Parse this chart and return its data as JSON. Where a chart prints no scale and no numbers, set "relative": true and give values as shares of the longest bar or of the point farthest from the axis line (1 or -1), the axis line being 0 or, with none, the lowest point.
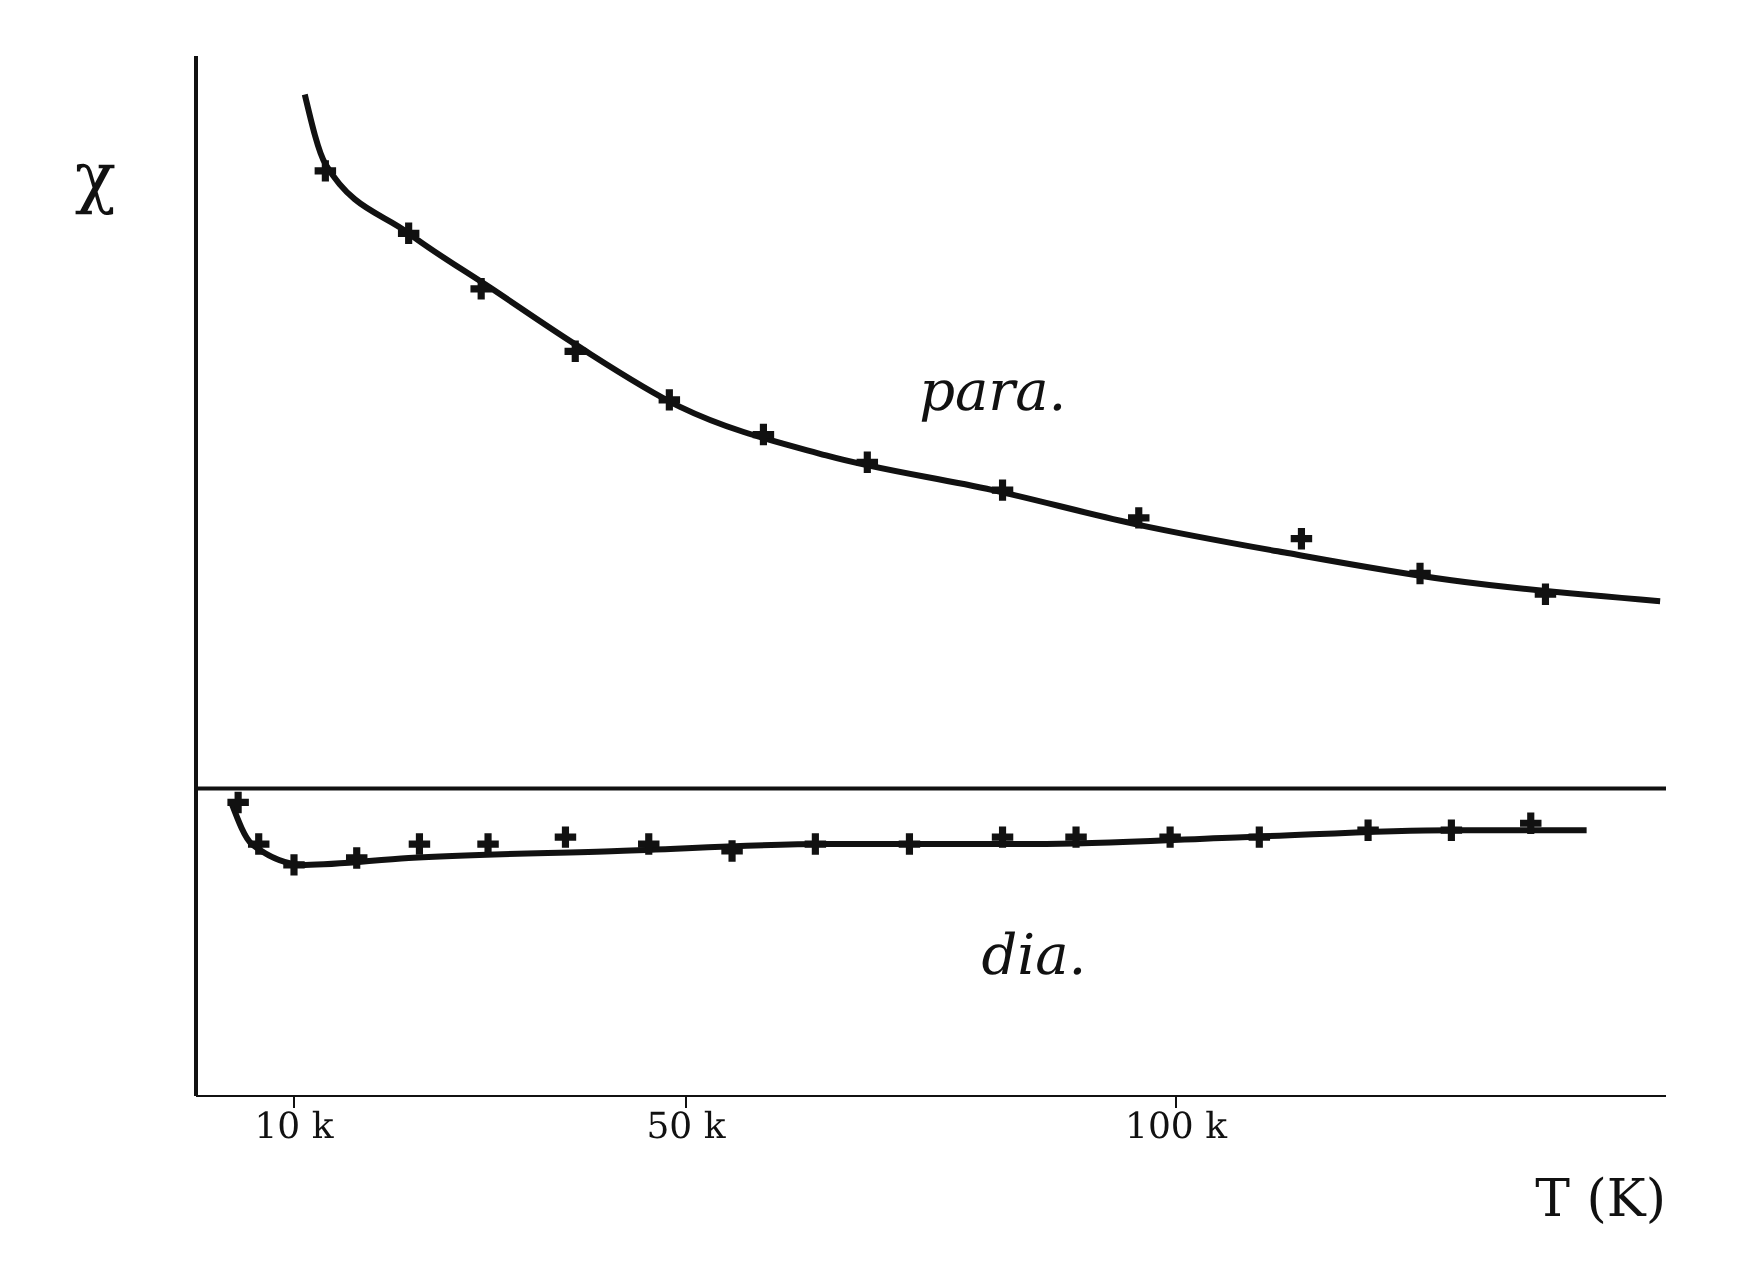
{
  "chart_data": {
    "type": "line",
    "relative": true,
    "xlabel": "T (K)",
    "ylabel": "χ",
    "xlim": [
      0,
      150
    ],
    "xticks": [
      {
        "value": 10,
        "label": "10 k"
      },
      {
        "value": 50,
        "label": "50 k"
      },
      {
        "value": 100,
        "label": "100 k"
      }
    ],
    "grid": false,
    "legend": false,
    "line_style": "solid",
    "series": [
      {
        "type": "scatter",
        "marker": "cross",
        "color": "#111111",
        "x": [
          13.2,
          21.7,
          29.1,
          38.7,
          48.3,
          57.9,
          68.5,
          82.3,
          96.2,
          112.8,
          124.9,
          137.7
        ],
        "values": [
          0.89,
          0.8,
          0.72,
          0.63,
          0.56,
          0.51,
          0.47,
          0.43,
          0.39,
          0.36,
          0.31,
          0.28
        ]
      },
      {
        "marker": "none",
        "name": "para.",
        "color": "#111111",
        "x": [
          11.1,
          13.2,
          21.7,
          30.2,
          38.7,
          49.4,
          64.3,
          81.3,
          96.2,
          111.1,
          128.1,
          149.4
        ],
        "values": [
          1,
          0.9,
          0.8,
          0.72,
          0.64,
          0.55,
          0.48,
          0.43,
          0.38,
          0.34,
          0.3,
          0.27
        ]
      },
      {
        "type": "scatter",
        "marker": "cross",
        "color": "#111111",
        "x": [
          4.3,
          6.4,
          10,
          16.4,
          22.8,
          29.8,
          37.7,
          46.2,
          54.7,
          63.2,
          72.8,
          82.3,
          89.8,
          99.4,
          108.5,
          119.6,
          128.1,
          136.2
        ],
        "values": [
          -0.02,
          -0.08,
          -0.11,
          -0.1,
          -0.08,
          -0.08,
          -0.07,
          -0.08,
          -0.09,
          -0.08,
          -0.08,
          -0.07,
          -0.07,
          -0.07,
          -0.07,
          -0.06,
          -0.06,
          -0.05
        ]
      },
      {
        "marker": "none",
        "name": "dia.",
        "color": "#111111",
        "x": [
          3.6,
          5.7,
          11.1,
          21.7,
          43,
          64.3,
          85.5,
          106.8,
          128.1,
          141.9
        ],
        "values": [
          -0.02,
          -0.08,
          -0.11,
          -0.1,
          -0.09,
          -0.08,
          -0.08,
          -0.07,
          -0.06,
          -0.06
        ]
      }
    ]
  }
}
